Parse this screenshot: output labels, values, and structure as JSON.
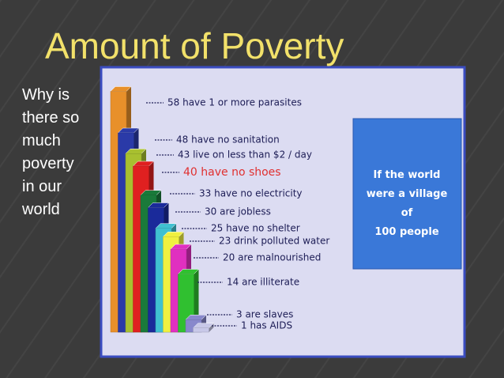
{
  "slide": {
    "title": "Amount of Poverty",
    "body": [
      "Why is",
      "there so",
      "much",
      "poverty",
      "in our",
      "world"
    ]
  },
  "chart_data": {
    "type": "bar",
    "values": [
      58,
      48,
      43,
      40,
      33,
      30,
      25,
      23,
      20,
      14,
      3,
      1
    ],
    "value_labels": [
      "58 have 1 or more parasites",
      "48 have no sanitation",
      "43 live on less than $2 / day",
      "40 have no shoes",
      "33 have no electricity",
      "30 are jobless",
      "25 have no shelter",
      "23 drink polluted water",
      "20 are malnourished",
      "14 are illiterate",
      "3 are slaves",
      "1 has AIDS"
    ],
    "colors": [
      "#e8902a",
      "#2a3aa8",
      "#a8c030",
      "#e02020",
      "#1a7a3a",
      "#1a2a9a",
      "#40c0d0",
      "#f0f040",
      "#e030c0",
      "#30c030",
      "#8888cc",
      "#c8c8e8"
    ],
    "label_colors": [
      "#1c1c55",
      "#1c1c55",
      "#1c1c55",
      "#e03030",
      "#1c1c55",
      "#1c1c55",
      "#1c1c55",
      "#1c1c55",
      "#1c1c55",
      "#1c1c55",
      "#1c1c55",
      "#1c1c55"
    ],
    "annotation": [
      "If the world",
      "were a village",
      "of",
      "100 people"
    ]
  }
}
